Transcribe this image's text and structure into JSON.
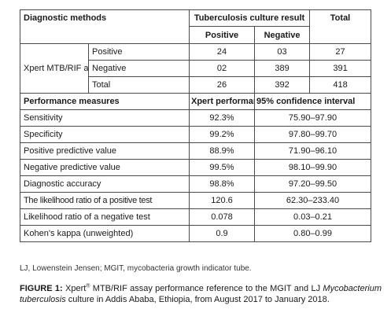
{
  "table": {
    "header": {
      "diagnostic_methods": "Diagnostic methods",
      "culture_result": "Tuberculosis culture result",
      "total": "Total",
      "positive": "Positive",
      "negative": "Negative"
    },
    "xpert": {
      "label": "Xpert MTB/RIF assay",
      "rows": [
        {
          "label": "Positive",
          "positive": "24",
          "negative": "03",
          "total": "27"
        },
        {
          "label": "Negative",
          "positive": "02",
          "negative": "389",
          "total": "391"
        },
        {
          "label": "Total",
          "positive": "26",
          "negative": "392",
          "total": "418"
        }
      ]
    },
    "performance_header": {
      "measure": "Performance measures",
      "xpert": "Xpert performance",
      "ci": "95% confidence interval"
    },
    "performance": [
      {
        "measure": "Sensitivity",
        "value": "92.3%",
        "ci": "75.90–97.90"
      },
      {
        "measure": "Specificity",
        "value": "99.2%",
        "ci": "97.80–99.70"
      },
      {
        "measure": "Positive predictive value",
        "value": "88.9%",
        "ci": "71.90–96.10"
      },
      {
        "measure": "Negative predictive value",
        "value": "99.5%",
        "ci": "98.10–99.90"
      },
      {
        "measure": "Diagnostic accuracy",
        "value": "98.8%",
        "ci": "97.20–99.50"
      },
      {
        "measure": "The likelihood ratio of a positive test",
        "value": "120.6",
        "ci": "62.30–233.40"
      },
      {
        "measure": "Likelihood ratio of a negative test",
        "value": "0.078",
        "ci": "0.03–0.21"
      },
      {
        "measure": "Kohen’s kappa (unweighted)",
        "value": "0.9",
        "ci": "0.80–0.99"
      }
    ]
  },
  "abbreviations": "LJ, Lowenstein Jensen; MGIT, mycobacteria growth indicator tube.",
  "caption": {
    "label": "FIGURE 1:",
    "part1": "Xpert",
    "sup": "®",
    "part2": "MTB/RIF assay performance reference to the MGIT and LJ",
    "italic": "Mycobacterium tuberculosis",
    "part3": "culture in Addis Ababa, Ethiopia, from August 2017 to January 2018."
  }
}
